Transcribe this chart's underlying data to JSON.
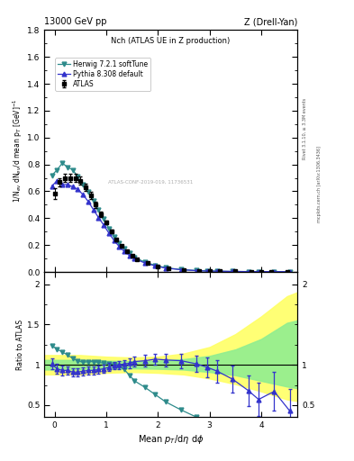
{
  "title_top": "13000 GeV pp",
  "title_right": "Z (Drell-Yan)",
  "plot_title": "Nch (ATLAS UE in Z production)",
  "xlabel": "Mean $p_T$/d$\\eta$ d$\\phi$",
  "ylabel_main": "1/N$_{ev}$ dN$_{ev}$/d mean p$_T$ [GeV]$^{-1}$",
  "ylabel_ratio": "Ratio to ATLAS",
  "atlas_x": [
    0.0,
    0.1,
    0.2,
    0.3,
    0.4,
    0.5,
    0.6,
    0.7,
    0.8,
    0.9,
    1.0,
    1.1,
    1.2,
    1.3,
    1.4,
    1.5,
    1.6,
    1.8,
    2.0,
    2.2,
    2.5,
    2.8,
    3.0,
    3.2,
    3.5,
    3.8,
    4.0,
    4.2,
    4.5
  ],
  "atlas_y": [
    0.58,
    0.67,
    0.7,
    0.7,
    0.7,
    0.68,
    0.63,
    0.57,
    0.5,
    0.43,
    0.37,
    0.3,
    0.24,
    0.195,
    0.155,
    0.12,
    0.095,
    0.065,
    0.042,
    0.028,
    0.016,
    0.009,
    0.007,
    0.005,
    0.004,
    0.003,
    0.002,
    0.002,
    0.001
  ],
  "atlas_yerr": [
    0.04,
    0.03,
    0.03,
    0.03,
    0.03,
    0.03,
    0.025,
    0.025,
    0.022,
    0.018,
    0.015,
    0.012,
    0.01,
    0.008,
    0.007,
    0.006,
    0.005,
    0.004,
    0.003,
    0.002,
    0.001,
    0.001,
    0.001,
    0.001,
    0.001,
    0.001,
    0.001,
    0.001,
    0.001
  ],
  "herwig_x": [
    -0.05,
    0.05,
    0.15,
    0.25,
    0.35,
    0.45,
    0.55,
    0.65,
    0.75,
    0.85,
    0.95,
    1.05,
    1.15,
    1.25,
    1.35,
    1.45,
    1.55,
    1.75,
    1.95,
    2.15,
    2.45,
    2.75,
    2.95,
    3.15,
    3.45,
    3.75,
    3.95,
    4.25,
    4.55
  ],
  "herwig_y": [
    0.72,
    0.76,
    0.81,
    0.78,
    0.76,
    0.71,
    0.65,
    0.595,
    0.53,
    0.46,
    0.395,
    0.325,
    0.265,
    0.215,
    0.172,
    0.138,
    0.108,
    0.073,
    0.049,
    0.032,
    0.018,
    0.011,
    0.008,
    0.006,
    0.004,
    0.003,
    0.002,
    0.002,
    0.001
  ],
  "pythia_x": [
    -0.05,
    0.05,
    0.15,
    0.25,
    0.35,
    0.45,
    0.55,
    0.65,
    0.75,
    0.85,
    0.95,
    1.05,
    1.15,
    1.25,
    1.35,
    1.45,
    1.55,
    1.75,
    1.95,
    2.15,
    2.45,
    2.75,
    2.95,
    3.15,
    3.45,
    3.75,
    3.95,
    4.25,
    4.55
  ],
  "pythia_y": [
    0.64,
    0.68,
    0.65,
    0.65,
    0.635,
    0.615,
    0.575,
    0.525,
    0.465,
    0.405,
    0.35,
    0.29,
    0.235,
    0.19,
    0.152,
    0.122,
    0.098,
    0.067,
    0.045,
    0.029,
    0.017,
    0.01,
    0.007,
    0.006,
    0.004,
    0.003,
    0.003,
    0.003,
    0.002
  ],
  "herwig_ratio_x": [
    -0.05,
    0.05,
    0.15,
    0.25,
    0.35,
    0.45,
    0.55,
    0.65,
    0.75,
    0.85,
    0.95,
    1.05,
    1.15,
    1.25,
    1.35,
    1.45,
    1.55,
    1.75,
    1.95,
    2.15,
    2.45,
    2.75,
    2.95,
    3.15
  ],
  "herwig_ratio_y": [
    1.24,
    1.19,
    1.16,
    1.12,
    1.08,
    1.05,
    1.03,
    1.04,
    1.04,
    1.03,
    1.02,
    1.01,
    1.005,
    0.98,
    0.94,
    0.87,
    0.8,
    0.72,
    0.63,
    0.54,
    0.44,
    0.35,
    0.28,
    0.2
  ],
  "pythia_ratio_x": [
    -0.05,
    0.05,
    0.15,
    0.25,
    0.35,
    0.45,
    0.55,
    0.65,
    0.75,
    0.85,
    0.95,
    1.05,
    1.15,
    1.25,
    1.35,
    1.45,
    1.55,
    1.75,
    1.95,
    2.15,
    2.45,
    2.75,
    2.95,
    3.15,
    3.45,
    3.75,
    3.95,
    4.25,
    4.55
  ],
  "pythia_ratio_y": [
    1.01,
    0.95,
    0.93,
    0.93,
    0.91,
    0.91,
    0.92,
    0.93,
    0.93,
    0.94,
    0.95,
    0.97,
    0.99,
    1.0,
    1.01,
    1.02,
    1.04,
    1.05,
    1.07,
    1.06,
    1.05,
    1.01,
    0.97,
    0.92,
    0.82,
    0.68,
    0.57,
    0.67,
    0.43
  ],
  "pythia_ratio_yerr": [
    0.07,
    0.06,
    0.06,
    0.05,
    0.05,
    0.05,
    0.05,
    0.05,
    0.05,
    0.05,
    0.05,
    0.05,
    0.05,
    0.05,
    0.05,
    0.06,
    0.06,
    0.07,
    0.07,
    0.08,
    0.09,
    0.1,
    0.12,
    0.14,
    0.17,
    0.19,
    0.21,
    0.24,
    0.27
  ],
  "band_yellow_x": [
    -0.2,
    0.5,
    1.0,
    1.5,
    2.0,
    2.5,
    3.0,
    3.5,
    4.0,
    4.5,
    4.7
  ],
  "band_yellow_lo": [
    0.88,
    0.88,
    0.9,
    0.91,
    0.9,
    0.88,
    0.83,
    0.76,
    0.67,
    0.57,
    0.55
  ],
  "band_yellow_hi": [
    1.12,
    1.12,
    1.1,
    1.09,
    1.1,
    1.14,
    1.22,
    1.38,
    1.6,
    1.85,
    1.9
  ],
  "band_green_x": [
    -0.2,
    0.5,
    1.0,
    1.5,
    2.0,
    2.5,
    3.0,
    3.5,
    4.0,
    4.5,
    4.7
  ],
  "band_green_lo": [
    0.94,
    0.94,
    0.95,
    0.955,
    0.95,
    0.94,
    0.91,
    0.87,
    0.8,
    0.73,
    0.71
  ],
  "band_green_hi": [
    1.06,
    1.06,
    1.05,
    1.045,
    1.05,
    1.07,
    1.11,
    1.19,
    1.32,
    1.52,
    1.55
  ],
  "xlim": [
    -0.2,
    4.7
  ],
  "ylim_main": [
    0.0,
    1.8
  ],
  "ylim_ratio": [
    0.35,
    2.15
  ],
  "yticks_main": [
    0.0,
    0.2,
    0.4,
    0.6,
    0.8,
    1.0,
    1.2,
    1.4,
    1.6,
    1.8
  ],
  "yticks_ratio": [
    0.5,
    1.0,
    1.5,
    2.0
  ],
  "color_atlas": "#000000",
  "color_herwig": "#2e8b8b",
  "color_pythia": "#3333cc",
  "color_band_yellow": "#ffff66",
  "color_band_green": "#90ee90",
  "bg_color": "#ffffff"
}
